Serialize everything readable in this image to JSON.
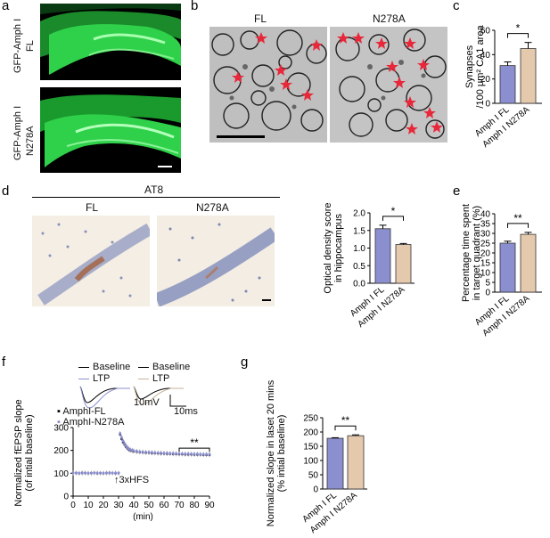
{
  "panels": {
    "a": {
      "letter": "a",
      "label_fl": "GFP-Amph I\nFL",
      "label_fl_1": "GFP-Amph I",
      "label_fl_2": "FL",
      "label_n": "GFP-Amph I",
      "label_n_2": "N278A"
    },
    "b": {
      "letter": "b",
      "col1": "FL",
      "col2": "N278A"
    },
    "c": {
      "letter": "c"
    },
    "d": {
      "letter": "d",
      "stain": "AT8",
      "col1": "FL",
      "col2": "N278A"
    },
    "e": {
      "letter": "e"
    },
    "f": {
      "letter": "f",
      "legend_left": [
        "Baseline",
        "LTP"
      ],
      "legend_right": [
        "Baseline",
        "LTP"
      ],
      "scale_v": "10mV",
      "scale_t": "10ms",
      "series_legend": [
        "AmphI-FL",
        "AmphI-N278A"
      ],
      "annotation": "3xHFS"
    },
    "g": {
      "letter": "g"
    }
  },
  "colors": {
    "fl": "#8b8fd0",
    "n278a": "#e5c9ad",
    "gfp": "#2fd04a",
    "accent_red": "#e8283a"
  },
  "chart_data": [
    {
      "id": "c",
      "type": "bar",
      "categories": [
        "Amph I FL",
        "Amph I N278A"
      ],
      "values": [
        31,
        45
      ],
      "errors": [
        3,
        5
      ],
      "ylabel": "Synapses\n/100 μm² CA1 area",
      "ylabel_1": "Synapses",
      "ylabel_2": "/100 μm² CA1 area",
      "ylim": [
        0,
        60
      ],
      "yticks": [
        "0",
        "20",
        "40",
        "60"
      ],
      "significance": "*"
    },
    {
      "id": "d",
      "type": "bar",
      "categories": [
        "Amph I FL",
        "Amph I N278A"
      ],
      "values": [
        1.55,
        1.1
      ],
      "errors": [
        0.1,
        0.03
      ],
      "ylabel_1": "Optical density score",
      "ylabel_2": "in hippocampus",
      "ylim": [
        0,
        2.0
      ],
      "yticks": [
        "0.0",
        "0.5",
        "1.0",
        "1.5",
        "2.0"
      ],
      "significance": "*"
    },
    {
      "id": "e",
      "type": "bar",
      "categories": [
        "Amph I FL",
        "Amph I N278A"
      ],
      "values": [
        25,
        29.5
      ],
      "errors": [
        1,
        1
      ],
      "ylabel_1": "Percentage time spent",
      "ylabel_2": "in target quadrant (%)",
      "ylim": [
        0,
        40
      ],
      "yticks": [
        "0",
        "5",
        "10",
        "15",
        "20",
        "25",
        "30",
        "35",
        "40"
      ],
      "significance": "**"
    },
    {
      "id": "f",
      "type": "scatter",
      "xlabel": "(min)",
      "ylabel_1": "Normalized fEPSP slope",
      "ylabel_2": "(of intial baseline)",
      "xlim": [
        0,
        90
      ],
      "ylim": [
        0,
        300
      ],
      "xticks": [
        "0",
        "10",
        "20",
        "30",
        "40",
        "50",
        "60",
        "70",
        "80",
        "90"
      ],
      "yticks": [
        "0",
        "100",
        "200",
        "300"
      ],
      "significance": "**",
      "series": [
        {
          "name": "AmphI-FL",
          "x": [
            0,
            2,
            4,
            6,
            8,
            10,
            12,
            14,
            16,
            18,
            20,
            22,
            24,
            26,
            28,
            30,
            31,
            32,
            33,
            34,
            35,
            36,
            37,
            38,
            39,
            40,
            42,
            44,
            46,
            48,
            50,
            52,
            54,
            56,
            58,
            60,
            62,
            64,
            66,
            68,
            70,
            72,
            74,
            76,
            78,
            80,
            82,
            84,
            86,
            88,
            90
          ],
          "y": [
            102,
            101,
            100,
            102,
            101,
            100,
            101,
            102,
            100,
            101,
            100,
            101,
            102,
            101,
            100,
            101,
            270,
            250,
            235,
            225,
            215,
            208,
            202,
            200,
            198,
            196,
            194,
            192,
            191,
            190,
            190,
            188,
            188,
            187,
            186,
            186,
            185,
            185,
            184,
            184,
            183,
            183,
            182,
            182,
            182,
            181,
            181,
            181,
            180,
            180,
            180
          ]
        },
        {
          "name": "AmphI-N278A",
          "x": [
            0,
            2,
            4,
            6,
            8,
            10,
            12,
            14,
            16,
            18,
            20,
            22,
            24,
            26,
            28,
            30,
            31,
            32,
            33,
            34,
            35,
            36,
            37,
            38,
            39,
            40,
            42,
            44,
            46,
            48,
            50,
            52,
            54,
            56,
            58,
            60,
            62,
            64,
            66,
            68,
            70,
            72,
            74,
            76,
            78,
            80,
            82,
            84,
            86,
            88,
            90
          ],
          "y": [
            100,
            102,
            101,
            100,
            102,
            101,
            100,
            101,
            102,
            100,
            101,
            102,
            100,
            101,
            102,
            100,
            275,
            258,
            242,
            230,
            220,
            212,
            206,
            203,
            201,
            199,
            197,
            195,
            194,
            193,
            193,
            192,
            191,
            190,
            190,
            189,
            189,
            188,
            188,
            187,
            187,
            186,
            186,
            186,
            185,
            185,
            185,
            184,
            184,
            184,
            184
          ]
        }
      ]
    },
    {
      "id": "g",
      "type": "bar",
      "categories": [
        "Amph I FL",
        "Amph I N278A"
      ],
      "values": [
        178,
        187
      ],
      "errors": [
        2,
        3
      ],
      "ylabel_1": "Normalized slope in laset 20 mins",
      "ylabel_2": "(% intial baseline)",
      "ylim": [
        0,
        250
      ],
      "yticks": [
        "0",
        "50",
        "100",
        "150",
        "200",
        "250"
      ],
      "significance": "**"
    }
  ]
}
